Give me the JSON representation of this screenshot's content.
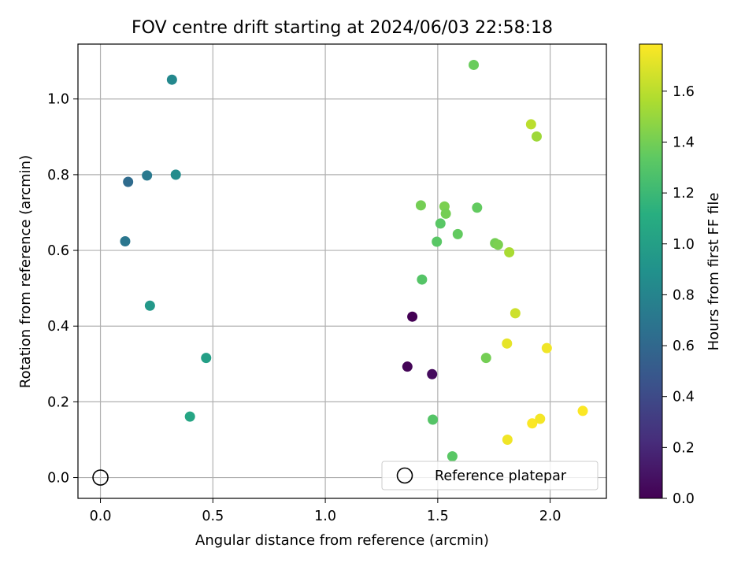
{
  "chart_data": {
    "type": "scatter",
    "title": "FOV centre drift starting at 2024/06/03 22:58:18",
    "xlabel": "Angular distance from reference (arcmin)",
    "ylabel": "Rotation from reference (arcmin)",
    "xlim": [
      -0.1,
      2.25
    ],
    "ylim": [
      -0.055,
      1.145
    ],
    "x_ticks": [
      0.0,
      0.5,
      1.0,
      1.5,
      2.0
    ],
    "x_tick_labels": [
      "0.0",
      "0.5",
      "1.0",
      "1.5",
      "2.0"
    ],
    "y_ticks": [
      0.0,
      0.2,
      0.4,
      0.6,
      0.8,
      1.0
    ],
    "y_tick_labels": [
      "0.0",
      "0.2",
      "0.4",
      "0.6",
      "0.8",
      "1.0"
    ],
    "grid": true,
    "colormap": "viridis",
    "colorbar": {
      "label": "Hours from first FF file",
      "range": [
        0.0,
        1.785
      ],
      "ticks": [
        0.0,
        0.2,
        0.4,
        0.6,
        0.8,
        1.0,
        1.2,
        1.4,
        1.6
      ],
      "tick_labels": [
        "0.0",
        "0.2",
        "0.4",
        "0.6",
        "0.8",
        "1.0",
        "1.2",
        "1.4",
        "1.6"
      ]
    },
    "legend": {
      "placement": "lower-right",
      "entries": [
        "Reference platepar"
      ]
    },
    "reference_point": {
      "x": 0.0,
      "y": 0.0
    },
    "points": [
      {
        "x": 1.387,
        "y": 0.425,
        "c": 0.0
      },
      {
        "x": 1.365,
        "y": 0.293,
        "c": 0.02
      },
      {
        "x": 1.475,
        "y": 0.273,
        "c": 0.05
      },
      {
        "x": 0.123,
        "y": 0.781,
        "c": 0.62
      },
      {
        "x": 0.11,
        "y": 0.624,
        "c": 0.7
      },
      {
        "x": 0.207,
        "y": 0.798,
        "c": 0.72
      },
      {
        "x": 0.335,
        "y": 0.8,
        "c": 0.86
      },
      {
        "x": 0.318,
        "y": 1.051,
        "c": 0.83
      },
      {
        "x": 0.22,
        "y": 0.454,
        "c": 0.95
      },
      {
        "x": 0.47,
        "y": 0.316,
        "c": 1.0
      },
      {
        "x": 0.398,
        "y": 0.161,
        "c": 1.05
      },
      {
        "x": 1.425,
        "y": 0.719,
        "c": 1.4
      },
      {
        "x": 1.43,
        "y": 0.523,
        "c": 1.3
      },
      {
        "x": 1.478,
        "y": 0.153,
        "c": 1.3
      },
      {
        "x": 1.496,
        "y": 0.623,
        "c": 1.32
      },
      {
        "x": 1.512,
        "y": 0.671,
        "c": 1.32
      },
      {
        "x": 1.53,
        "y": 0.716,
        "c": 1.42
      },
      {
        "x": 1.536,
        "y": 0.697,
        "c": 1.4
      },
      {
        "x": 1.565,
        "y": 0.056,
        "c": 1.32
      },
      {
        "x": 1.589,
        "y": 0.643,
        "c": 1.35
      },
      {
        "x": 1.66,
        "y": 1.09,
        "c": 1.37
      },
      {
        "x": 1.675,
        "y": 0.713,
        "c": 1.35
      },
      {
        "x": 1.715,
        "y": 0.316,
        "c": 1.4
      },
      {
        "x": 1.755,
        "y": 0.619,
        "c": 1.4
      },
      {
        "x": 1.768,
        "y": 0.615,
        "c": 1.42
      },
      {
        "x": 1.818,
        "y": 0.595,
        "c": 1.55
      },
      {
        "x": 1.845,
        "y": 0.434,
        "c": 1.65
      },
      {
        "x": 1.808,
        "y": 0.354,
        "c": 1.72
      },
      {
        "x": 1.81,
        "y": 0.1,
        "c": 1.75
      },
      {
        "x": 1.915,
        "y": 0.933,
        "c": 1.6
      },
      {
        "x": 1.94,
        "y": 0.901,
        "c": 1.52
      },
      {
        "x": 1.985,
        "y": 0.342,
        "c": 1.75
      },
      {
        "x": 1.92,
        "y": 0.143,
        "c": 1.78
      },
      {
        "x": 1.955,
        "y": 0.155,
        "c": 1.76
      },
      {
        "x": 2.145,
        "y": 0.176,
        "c": 1.78
      }
    ]
  }
}
